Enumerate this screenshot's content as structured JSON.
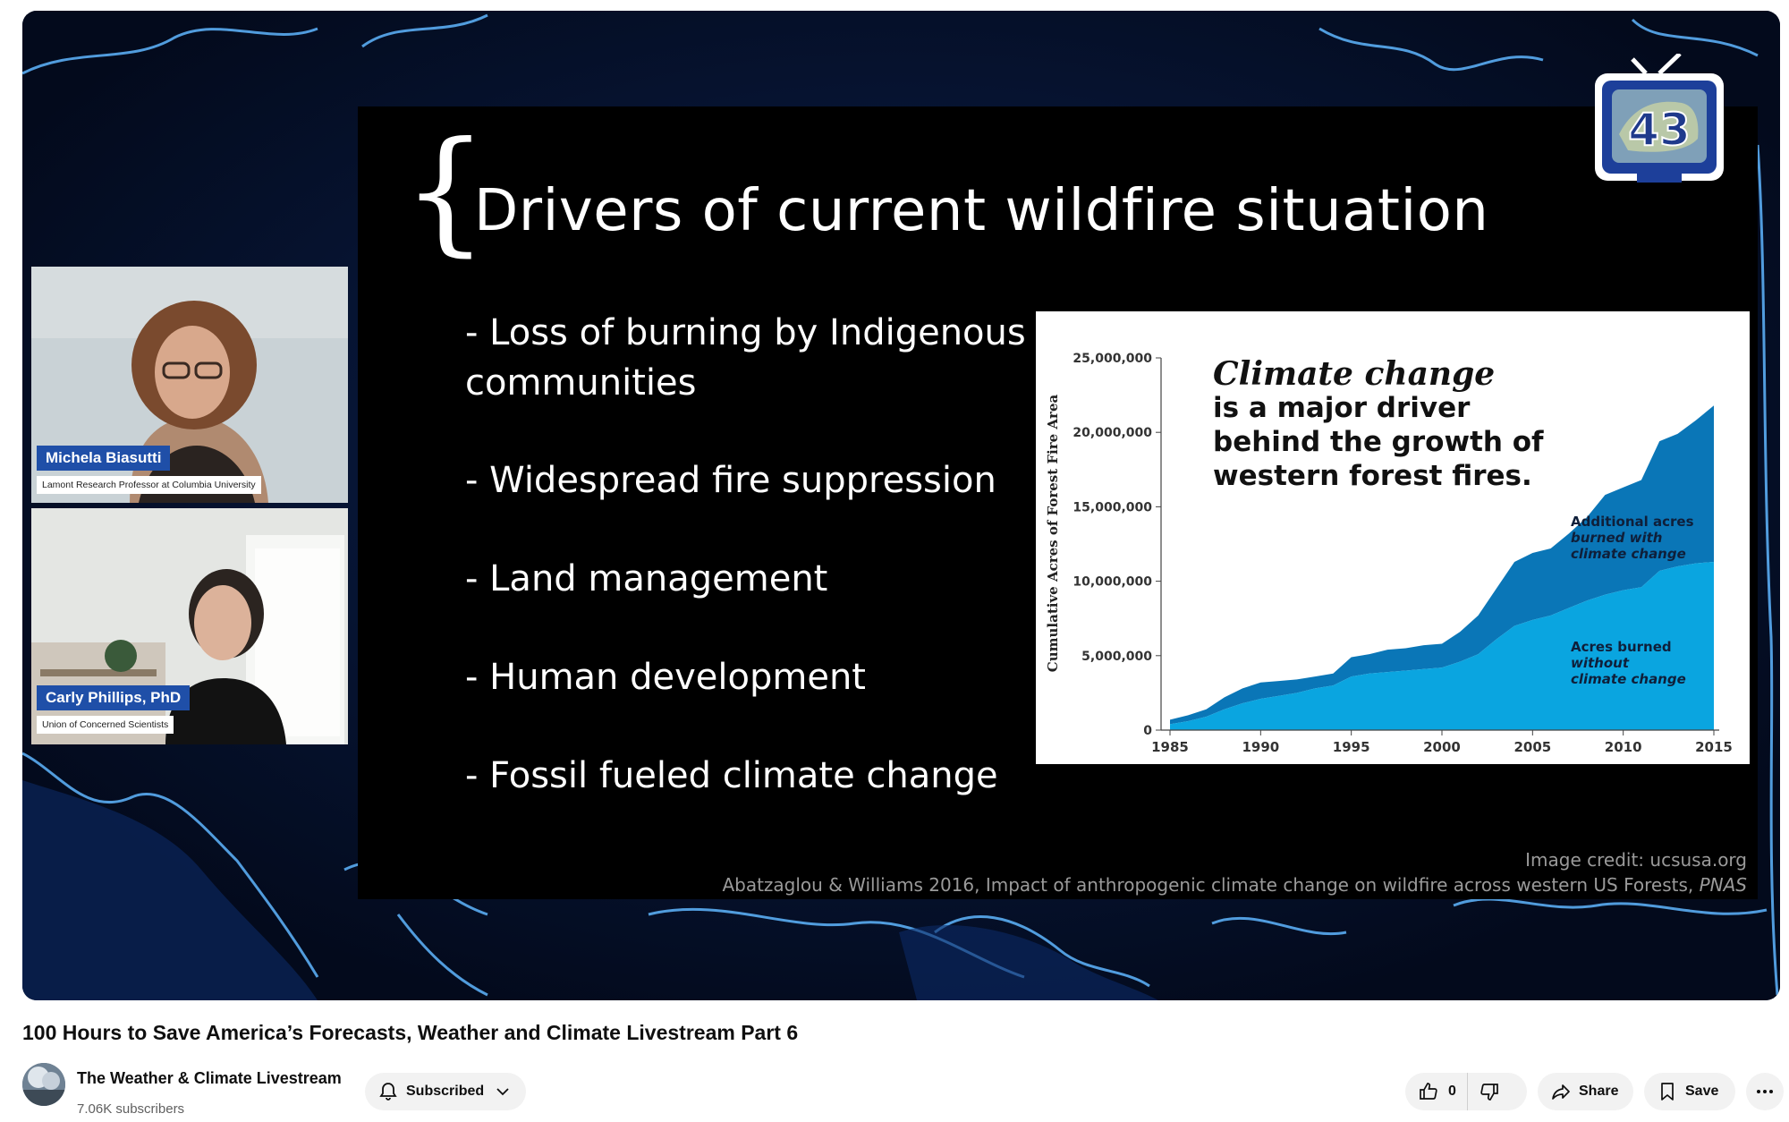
{
  "video": {
    "title": "100 Hours to Save America’s Forecasts, Weather and Climate Livestream Part 6"
  },
  "slide": {
    "title": "Drivers of current wildfire situation",
    "bullets": [
      "- Loss of burning by Indigenous communities",
      "-  Widespread fire suppression",
      "-  Land management",
      "-  Human development",
      "-  Fossil fueled climate change"
    ],
    "credit": "Image credit: ucsusa.org",
    "citation_main": "Abatzaglou & Williams 2016, Impact of anthropogenic climate change on wildfire across western US Forests, ",
    "citation_journal": "PNAS"
  },
  "chart_data": {
    "type": "area",
    "headline_italic": "Climate change",
    "headline_lines": [
      "is a major driver",
      "behind the growth of",
      "western forest fires."
    ],
    "ylabel": "Cumulative Acres of Forest Fire Area",
    "ylim": [
      0,
      25000000
    ],
    "xlim": [
      1985,
      2015
    ],
    "yticks": [
      "0",
      "5,000,000",
      "10,000,000",
      "15,000,000",
      "20,000,000",
      "25,000,000"
    ],
    "xticks": [
      "1985",
      "1990",
      "1995",
      "2000",
      "2005",
      "2010",
      "2015"
    ],
    "x": [
      1985,
      1986,
      1987,
      1988,
      1989,
      1990,
      1991,
      1992,
      1993,
      1994,
      1995,
      1996,
      1997,
      1998,
      1999,
      2000,
      2001,
      2002,
      2003,
      2004,
      2005,
      2006,
      2007,
      2008,
      2009,
      2010,
      2011,
      2012,
      2013,
      2014,
      2015
    ],
    "series": [
      {
        "name": "Acres burned without climate change",
        "color": "#0aa5e0",
        "values": [
          400000,
          600000,
          900000,
          1400000,
          1800000,
          2100000,
          2300000,
          2500000,
          2800000,
          3000000,
          3600000,
          3800000,
          3900000,
          4000000,
          4100000,
          4200000,
          4600000,
          5100000,
          6100000,
          7000000,
          7400000,
          7700000,
          8200000,
          8700000,
          9100000,
          9400000,
          9600000,
          10700000,
          11000000,
          11200000,
          11300000
        ]
      },
      {
        "name": "Additional acres burned with climate change",
        "color": "#0a76b7",
        "values": [
          300000,
          400000,
          500000,
          800000,
          1000000,
          1100000,
          1000000,
          900000,
          800000,
          800000,
          1300000,
          1300000,
          1500000,
          1500000,
          1600000,
          1600000,
          2000000,
          2600000,
          3400000,
          4300000,
          4500000,
          4500000,
          5000000,
          5600000,
          6700000,
          6900000,
          7200000,
          8700000,
          8900000,
          9600000,
          10500000
        ]
      }
    ],
    "labels": {
      "additional": [
        "Additional acres",
        "burned with",
        "climate change"
      ],
      "without": [
        "Acres burned",
        "without",
        "climate change"
      ]
    },
    "grid": false
  },
  "speakers": [
    {
      "name": "Michela Biasutti",
      "title": "Lamont Research Professor at Columbia University"
    },
    {
      "name": "Carly Phillips, PhD",
      "title": "Union of Concerned Scientists"
    }
  ],
  "logo": {
    "number": "43"
  },
  "channel": {
    "name": "The Weather & Climate Livestream",
    "subscribers": "7.06K subscribers",
    "subscribe_label": "Subscribed"
  },
  "actions": {
    "like_count": "0",
    "share_label": "Share",
    "save_label": "Save"
  },
  "colors": {
    "name_tag": "#1f4fa8",
    "pill_bg": "#f2f2f2"
  }
}
